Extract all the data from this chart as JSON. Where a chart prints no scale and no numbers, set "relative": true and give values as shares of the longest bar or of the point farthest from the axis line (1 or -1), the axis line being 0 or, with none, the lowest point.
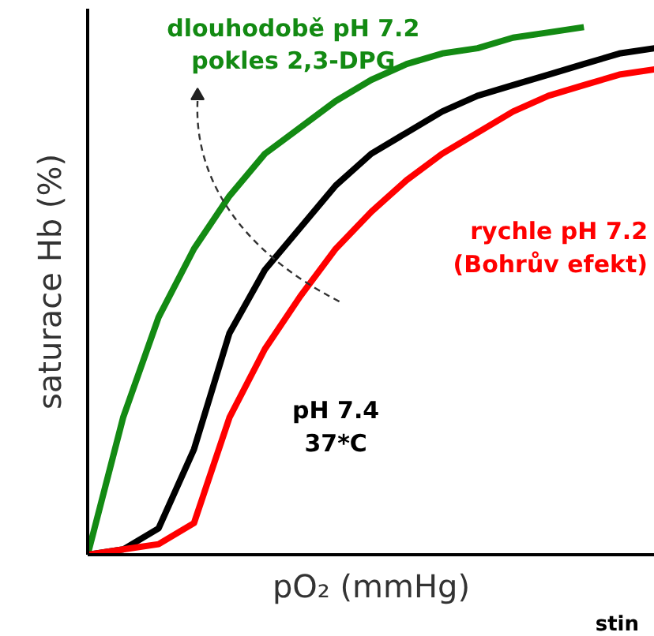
{
  "chart_data": {
    "type": "line",
    "relative": true,
    "ylabel": "saturace Hb (%)",
    "xlabel": "pO₂ (mmHg)",
    "categories": [
      null,
      null,
      null,
      null,
      null,
      null,
      null,
      null,
      null,
      null,
      null,
      null,
      null,
      null,
      null,
      null,
      null
    ],
    "series": [
      {
        "color": "#138a13",
        "values": [
          0,
          0.26,
          0.45,
          0.58,
          0.68,
          0.76,
          0.81,
          0.86,
          0.9,
          0.93,
          0.95,
          0.96,
          0.98,
          0.99,
          1.0,
          null,
          null
        ]
      },
      {
        "color": "#000000",
        "values": [
          0,
          0.01,
          0.05,
          0.2,
          0.42,
          0.54,
          0.62,
          0.7,
          0.76,
          0.8,
          0.84,
          0.87,
          0.89,
          0.91,
          0.93,
          0.95,
          0.96
        ]
      },
      {
        "color": "#ff0000",
        "values": [
          0,
          0.01,
          0.02,
          0.06,
          0.26,
          0.39,
          0.49,
          0.58,
          0.65,
          0.71,
          0.76,
          0.8,
          0.84,
          0.87,
          0.89,
          0.91,
          0.92
        ]
      }
    ],
    "annotations": [
      "dlouhodobě pH 7.2\npokles 2,3-DPG",
      "rychle pH 7.2\n(Bohrův efekt)",
      "pH 7.4\n37*C",
      "stin"
    ],
    "grid": false
  }
}
